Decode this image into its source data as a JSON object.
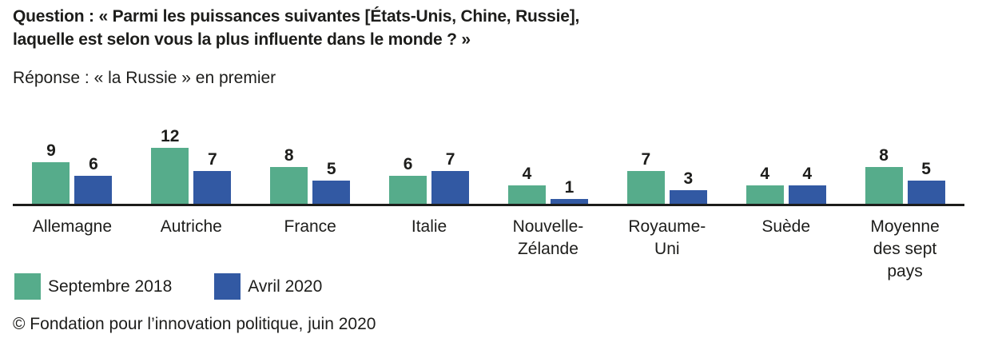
{
  "header": {
    "question_line1": "Question : « Parmi les puissances suivantes [États-Unis, Chine, Russie],",
    "question_line2": "laquelle est selon vous la plus influente dans le monde ? »",
    "response": "Réponse : « la Russie » en premier"
  },
  "chart_data": {
    "type": "bar",
    "title": "Réponse : « la Russie » en premier",
    "categories": [
      "Allemagne",
      "Autriche",
      "France",
      "Italie",
      "Nouvelle-Zélande",
      "Royaume-Uni",
      "Suède",
      "Moyenne des sept pays"
    ],
    "category_display_lines": [
      [
        "Allemagne"
      ],
      [
        "Autriche"
      ],
      [
        "France"
      ],
      [
        "Italie"
      ],
      [
        "Nouvelle-",
        "Zélande"
      ],
      [
        "Royaume-",
        "Uni"
      ],
      [
        "Suède"
      ],
      [
        "Moyenne",
        "des sept",
        "pays"
      ]
    ],
    "series": [
      {
        "name": "Septembre 2018",
        "color": "#56AC8B",
        "values": [
          9,
          12,
          8,
          6,
          4,
          7,
          4,
          8
        ]
      },
      {
        "name": "Avril 2020",
        "color": "#3259A3",
        "values": [
          6,
          7,
          5,
          7,
          1,
          3,
          4,
          5
        ]
      }
    ],
    "ylim": [
      0,
      12
    ],
    "grid": false,
    "legend_position": "bottom-left",
    "xlabel": "",
    "ylabel": ""
  },
  "colors": {
    "axis": "#1D1D1B",
    "text": "#1D1D1B",
    "green": "#56AC8B",
    "blue": "#3259A3"
  },
  "footer": {
    "credit": "© Fondation pour l’innovation politique, juin 2020"
  }
}
